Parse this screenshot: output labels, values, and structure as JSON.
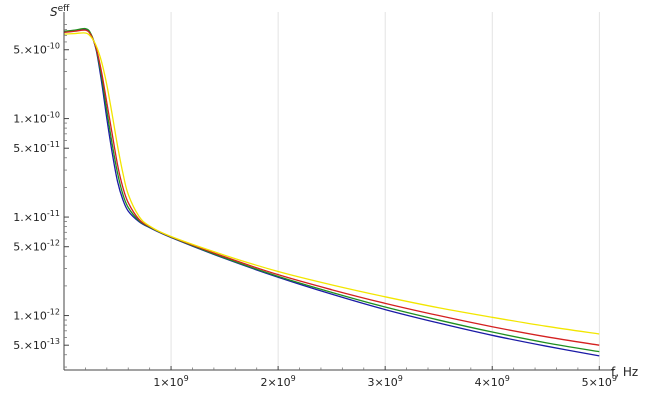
{
  "chart_data": {
    "type": "line",
    "title": "",
    "ylabel": {
      "main": "S",
      "sup": "eff"
    },
    "xlabel": "f, Hz",
    "xlim": [
      0,
      5100000000
    ],
    "ylim": [
      2.8e-13,
      1.05e-09
    ],
    "yscale": "log",
    "grid": {
      "vertical": true,
      "horizontal": false
    },
    "legend": "none",
    "x_ticks": [
      {
        "value": 1000000000,
        "mant": "1",
        "exp": "9"
      },
      {
        "value": 2000000000,
        "mant": "2",
        "exp": "9"
      },
      {
        "value": 3000000000,
        "mant": "3",
        "exp": "9"
      },
      {
        "value": 4000000000,
        "mant": "4",
        "exp": "9"
      },
      {
        "value": 5000000000,
        "mant": "5",
        "exp": "9"
      }
    ],
    "y_ticks": [
      {
        "value": 5e-10,
        "mant": "5.",
        "exp": "-10"
      },
      {
        "value": 1e-10,
        "mant": "1.",
        "exp": "-10"
      },
      {
        "value": 5e-11,
        "mant": "5.",
        "exp": "-11"
      },
      {
        "value": 1e-11,
        "mant": "1.",
        "exp": "-11"
      },
      {
        "value": 5e-12,
        "mant": "5.",
        "exp": "-12"
      },
      {
        "value": 1e-12,
        "mant": "1.",
        "exp": "-12"
      },
      {
        "value": 5e-13,
        "mant": "5.",
        "exp": "-13"
      }
    ],
    "series": [
      {
        "color": "#1a1aa6",
        "x": [
          0,
          100000000,
          200000000,
          250000000,
          300000000,
          350000000,
          400000000,
          450000000,
          500000000,
          550000000,
          600000000,
          700000000,
          800000000,
          1000000000,
          1500000000,
          2000000000,
          2500000000,
          3000000000,
          3500000000,
          4000000000,
          4500000000,
          5000000000
        ],
        "y": [
          7.6e-10,
          7.8e-10,
          8.1e-10,
          7.2e-10,
          5e-10,
          2.4e-10,
          1e-10,
          4.5e-11,
          2.3e-11,
          1.5e-11,
          1.15e-11,
          9e-12,
          7.8e-12,
          6.2e-12,
          3.8e-12,
          2.45e-12,
          1.65e-12,
          1.15e-12,
          8.4e-13,
          6.3e-13,
          4.9e-13,
          3.9e-13
        ]
      },
      {
        "color": "#1f8f1f",
        "x": [
          0,
          100000000,
          200000000,
          250000000,
          300000000,
          350000000,
          400000000,
          450000000,
          500000000,
          550000000,
          600000000,
          700000000,
          800000000,
          1000000000,
          1500000000,
          2000000000,
          2500000000,
          3000000000,
          3500000000,
          4000000000,
          4500000000,
          5000000000
        ],
        "y": [
          7.7e-10,
          7.9e-10,
          8.2e-10,
          7.3e-10,
          5.1e-10,
          2.7e-10,
          1.2e-10,
          5.5e-11,
          2.8e-11,
          1.7e-11,
          1.25e-11,
          9.2e-12,
          7.9e-12,
          6.25e-12,
          3.85e-12,
          2.5e-12,
          1.72e-12,
          1.22e-12,
          9e-13,
          6.8e-13,
          5.3e-13,
          4.3e-13
        ]
      },
      {
        "color": "#d42020",
        "x": [
          0,
          100000000,
          200000000,
          250000000,
          300000000,
          350000000,
          400000000,
          450000000,
          500000000,
          550000000,
          600000000,
          700000000,
          800000000,
          1000000000,
          1500000000,
          2000000000,
          2500000000,
          3000000000,
          3500000000,
          4000000000,
          4500000000,
          5000000000
        ],
        "y": [
          7.5e-10,
          7.7e-10,
          7.9e-10,
          7.1e-10,
          5.2e-10,
          3e-10,
          1.45e-10,
          7e-11,
          3.4e-11,
          2e-11,
          1.4e-11,
          9.5e-12,
          8e-12,
          6.3e-12,
          3.95e-12,
          2.6e-12,
          1.83e-12,
          1.33e-12,
          1e-12,
          7.7e-13,
          6.1e-13,
          5e-13
        ]
      },
      {
        "color": "#f2e600",
        "x": [
          0,
          100000000,
          200000000,
          250000000,
          300000000,
          350000000,
          400000000,
          450000000,
          500000000,
          550000000,
          600000000,
          700000000,
          800000000,
          1000000000,
          1500000000,
          2000000000,
          2500000000,
          3000000000,
          3500000000,
          4000000000,
          4500000000,
          5000000000
        ],
        "y": [
          7.2e-10,
          7.3e-10,
          7.4e-10,
          6.8e-10,
          5.5e-10,
          3.8e-10,
          2.2e-10,
          1.1e-10,
          5.3e-11,
          2.8e-11,
          1.7e-11,
          1.02e-11,
          8.1e-12,
          6.35e-12,
          4.1e-12,
          2.8e-12,
          2.05e-12,
          1.55e-12,
          1.2e-12,
          9.6e-13,
          7.8e-13,
          6.5e-13
        ]
      }
    ]
  }
}
